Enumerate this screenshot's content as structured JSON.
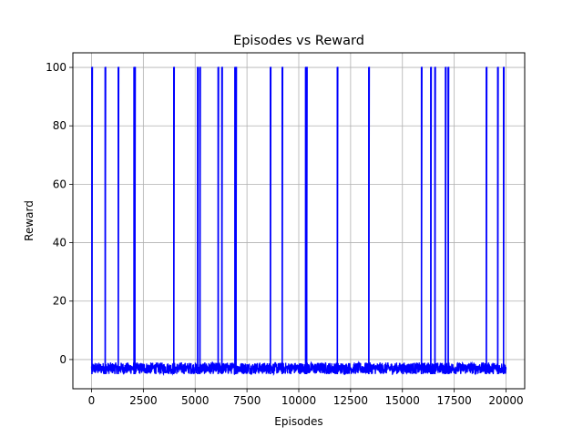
{
  "chart_data": {
    "type": "line",
    "title": "Episodes vs Reward",
    "xlabel": "Episodes",
    "ylabel": "Reward",
    "xlim": [
      -900,
      20900
    ],
    "ylim": [
      -10,
      105
    ],
    "grid": true,
    "line_color": "#0000ff",
    "x_ticks": [
      0,
      2500,
      5000,
      7500,
      10000,
      12500,
      15000,
      17500,
      20000
    ],
    "x_tick_labels": [
      "0",
      "2500",
      "5000",
      "7500",
      "10000",
      "12500",
      "15000",
      "17500",
      "20000"
    ],
    "y_ticks": [
      0,
      20,
      40,
      60,
      80,
      100
    ],
    "y_tick_labels": [
      "0",
      "20",
      "40",
      "60",
      "80",
      "100"
    ],
    "series": [
      {
        "episodes_range": [
          0,
          20000
        ],
        "baseline_reward_range": [
          -5,
          -1
        ],
        "spike_reward": 100,
        "spike_episodes": [
          20,
          660,
          1290,
          2050,
          2090,
          3970,
          5120,
          5230,
          6110,
          6290,
          6920,
          6970,
          8630,
          9200,
          10330,
          10380,
          11860,
          13380,
          15920,
          16370,
          16570,
          17080,
          17210,
          19050,
          19600,
          19880
        ]
      }
    ]
  }
}
